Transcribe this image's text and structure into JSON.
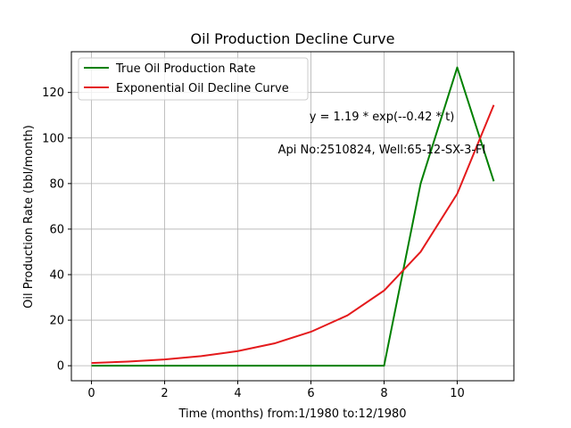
{
  "chart_data": {
    "type": "line",
    "title": "Oil Production Decline Curve",
    "xlabel": "Time (months) from:1/1980 to:12/1980",
    "ylabel": "Oil Production Rate (bbl/month)",
    "xlim": [
      -0.55,
      11.55
    ],
    "ylim": [
      -6.6,
      137.9
    ],
    "xticks": [
      0,
      2,
      4,
      6,
      8,
      10
    ],
    "yticks": [
      0,
      20,
      40,
      60,
      80,
      100,
      120
    ],
    "grid": true,
    "legend_position": "upper-left",
    "x": [
      0,
      1,
      2,
      3,
      4,
      5,
      6,
      7,
      8,
      9,
      10,
      11
    ],
    "series": [
      {
        "name": "True Oil Production Rate",
        "color": "#008000",
        "values": [
          0,
          0,
          0,
          0,
          0,
          0,
          0,
          0,
          0,
          80,
          131,
          81
        ]
      },
      {
        "name": "Exponential Oil Decline Curve",
        "color": "#e41a1c",
        "values": [
          1.19,
          1.81,
          2.76,
          4.21,
          6.42,
          9.79,
          14.9,
          22.1,
          33.0,
          50.0,
          75.5,
          114.5
        ]
      }
    ],
    "annotations": [
      "y = 1.19 * exp(--0.42 * t)",
      "Api No:2510824, Well:65-12-SX-3-FI"
    ]
  }
}
